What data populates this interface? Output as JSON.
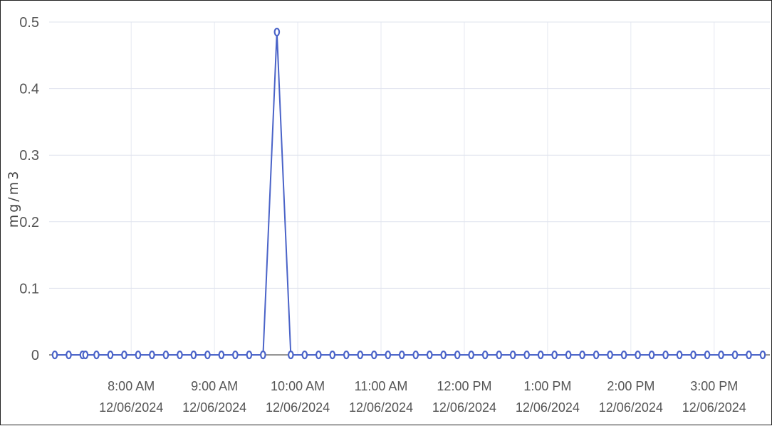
{
  "chart_data": {
    "type": "line",
    "ylabel": "mg/m3",
    "xlabel": "",
    "title": "",
    "ylim": [
      0,
      0.5
    ],
    "yticks": [
      "0",
      "0.1",
      "0.2",
      "0.3",
      "0.4",
      "0.5"
    ],
    "grid": true,
    "x_ticks": [
      {
        "time": "8:00 AM",
        "date": "12/06/2024"
      },
      {
        "time": "9:00 AM",
        "date": "12/06/2024"
      },
      {
        "time": "10:00 AM",
        "date": "12/06/2024"
      },
      {
        "time": "11:00 AM",
        "date": "12/06/2024"
      },
      {
        "time": "12:00 PM",
        "date": "12/06/2024"
      },
      {
        "time": "1:00 PM",
        "date": "12/06/2024"
      },
      {
        "time": "2:00 PM",
        "date": "12/06/2024"
      },
      {
        "time": "3:00 PM",
        "date": "12/06/2024"
      }
    ],
    "x_range": [
      "2024-12-06 07:05",
      "2024-12-06 15:35"
    ],
    "series": [
      {
        "color": "#4a63c8",
        "x": [
          "2024-12-06 07:05",
          "2024-12-06 07:15",
          "2024-12-06 07:25",
          "2024-12-06 07:27",
          "2024-12-06 07:35",
          "2024-12-06 07:45",
          "2024-12-06 07:55",
          "2024-12-06 08:05",
          "2024-12-06 08:15",
          "2024-12-06 08:25",
          "2024-12-06 08:35",
          "2024-12-06 08:45",
          "2024-12-06 08:55",
          "2024-12-06 09:05",
          "2024-12-06 09:15",
          "2024-12-06 09:25",
          "2024-12-06 09:35",
          "2024-12-06 09:45",
          "2024-12-06 09:55",
          "2024-12-06 10:05",
          "2024-12-06 10:15",
          "2024-12-06 10:25",
          "2024-12-06 10:35",
          "2024-12-06 10:45",
          "2024-12-06 10:55",
          "2024-12-06 11:05",
          "2024-12-06 11:15",
          "2024-12-06 11:25",
          "2024-12-06 11:35",
          "2024-12-06 11:45",
          "2024-12-06 11:55",
          "2024-12-06 12:05",
          "2024-12-06 12:15",
          "2024-12-06 12:25",
          "2024-12-06 12:35",
          "2024-12-06 12:45",
          "2024-12-06 12:55",
          "2024-12-06 13:05",
          "2024-12-06 13:15",
          "2024-12-06 13:25",
          "2024-12-06 13:35",
          "2024-12-06 13:45",
          "2024-12-06 13:55",
          "2024-12-06 14:05",
          "2024-12-06 14:15",
          "2024-12-06 14:25",
          "2024-12-06 14:35",
          "2024-12-06 14:45",
          "2024-12-06 14:55",
          "2024-12-06 15:05",
          "2024-12-06 15:15",
          "2024-12-06 15:25",
          "2024-12-06 15:35"
        ],
        "y": [
          0,
          0,
          0,
          0,
          0,
          0,
          0,
          0,
          0,
          0,
          0,
          0,
          0,
          0,
          0,
          0,
          0,
          0.485,
          0,
          0,
          0,
          0,
          0,
          0,
          0,
          0,
          0,
          0,
          0,
          0,
          0,
          0,
          0,
          0,
          0,
          0,
          0,
          0,
          0,
          0,
          0,
          0,
          0,
          0,
          0,
          0,
          0,
          0,
          0,
          0,
          0,
          0,
          0
        ]
      }
    ]
  }
}
